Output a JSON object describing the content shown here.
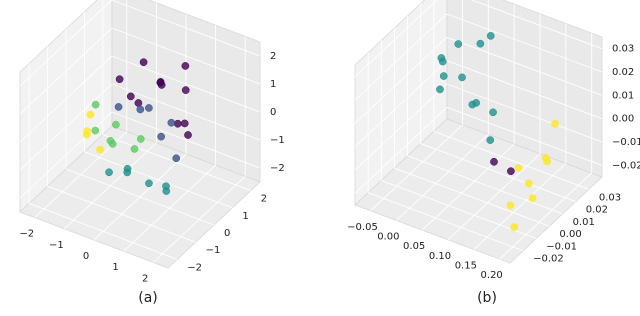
{
  "chart_data": [
    {
      "type": "scatter3d",
      "caption": "(a)",
      "xlim": [
        -2.5,
        2.5
      ],
      "ylim": [
        -2.5,
        2.5
      ],
      "zlim": [
        -2.5,
        2.5
      ],
      "xticks": [
        {
          "value": -2,
          "label": "−2"
        },
        {
          "value": -1,
          "label": "−1"
        },
        0,
        1,
        2
      ],
      "yticks": [
        {
          "value": -2,
          "label": "−2"
        },
        {
          "value": -1,
          "label": "−1"
        },
        0,
        1,
        2
      ],
      "zticks": [
        {
          "value": -2,
          "label": "−2"
        },
        {
          "value": -1,
          "label": "−1"
        },
        0,
        1,
        2
      ],
      "series": [
        {
          "color": "#440154",
          "x": [
            -0.5,
            0.2,
            0.8,
            -1.0,
            0.5,
            1.2,
            -0.2,
            1.0,
            0.0,
            1.4,
            -0.8,
            0.6
          ],
          "y": [
            1.0,
            0.8,
            1.2,
            0.5,
            0.3,
            0.5,
            1.5,
            1.0,
            -0.5,
            -0.2,
            1.2,
            1.5
          ],
          "z": [
            1.5,
            1.2,
            0.9,
            1.0,
            1.6,
            0.3,
            0.5,
            -0.5,
            1.4,
            0.8,
            -0.2,
            1.5
          ]
        },
        {
          "color": "#3b528b",
          "x": [
            0.3,
            -0.3,
            0.9,
            0.5,
            -0.6,
            1.1
          ],
          "y": [
            0.0,
            0.5,
            -0.3,
            0.9,
            -0.2,
            0.2
          ],
          "z": [
            0.8,
            0.2,
            0.2,
            -0.2,
            0.6,
            -0.8
          ]
        },
        {
          "color": "#21918c",
          "x": [
            0.8,
            0.2,
            1.2,
            -0.3,
            0.5,
            1.5
          ],
          "y": [
            -0.8,
            -1.0,
            -0.5,
            -1.2,
            -1.5,
            -1.0
          ],
          "z": [
            -1.2,
            -0.8,
            -1.5,
            -1.0,
            -0.5,
            -0.9
          ]
        },
        {
          "color": "#5ec962",
          "x": [
            -1.2,
            -0.8,
            -1.5,
            -0.5,
            0.0,
            -1.0,
            0.4
          ],
          "y": [
            -0.5,
            -0.2,
            0.0,
            -0.8,
            -0.3,
            0.3,
            -0.6
          ],
          "z": [
            -0.3,
            -0.8,
            0.2,
            -0.2,
            -0.6,
            -0.5,
            0.1
          ]
        },
        {
          "color": "#fde725",
          "x": [
            -1.6,
            -1.3,
            -1.8,
            -1.1
          ],
          "y": [
            -0.3,
            -0.8,
            0.2,
            -0.4
          ],
          "z": [
            -0.6,
            -0.3,
            -0.4,
            -1.0
          ]
        }
      ]
    },
    {
      "type": "scatter3d",
      "caption": "(b)",
      "xlim": [
        -0.08,
        0.22
      ],
      "ylim": [
        -0.03,
        0.04
      ],
      "zlim": [
        -0.025,
        0.035
      ],
      "xticks": [
        {
          "value": -0.05,
          "label": "−0.05"
        },
        {
          "value": 0,
          "label": "0.00"
        },
        {
          "value": 0.05,
          "label": "0.05"
        },
        {
          "value": 0.1,
          "label": "0.10"
        },
        {
          "value": 0.15,
          "label": "0.15"
        },
        {
          "value": 0.2,
          "label": "0.20"
        }
      ],
      "yticks": [
        {
          "value": -0.02,
          "label": "−0.02"
        },
        {
          "value": -0.01,
          "label": "−0.01"
        },
        {
          "value": 0,
          "label": "0.00"
        },
        0.01,
        0.02,
        0.03
      ],
      "zticks": [
        {
          "value": -0.02,
          "label": "−0.02"
        },
        {
          "value": -0.01,
          "label": "−0.01"
        },
        {
          "value": 0,
          "label": "0.00"
        },
        0.01,
        0.02,
        0.03
      ],
      "series": [
        {
          "color": "#21918c",
          "x": [
            -0.04,
            -0.02,
            0.0,
            -0.03,
            0.01,
            0.02,
            -0.05,
            0.04,
            0.06,
            0.08,
            -0.01,
            0.03
          ],
          "y": [
            0.02,
            0.025,
            0.02,
            0.015,
            0.03,
            0.02,
            0.025,
            0.015,
            0.02,
            0.01,
            0.01,
            0.03
          ],
          "z": [
            0.015,
            0.02,
            0.01,
            0.005,
            0.02,
            0.0,
            0.01,
            0.005,
            0.0,
            -0.005,
            0.015,
            0.025
          ]
        },
        {
          "color": "#440154",
          "x": [
            0.1,
            0.12
          ],
          "y": [
            0.005,
            0.01
          ],
          "z": [
            -0.01,
            -0.015
          ]
        },
        {
          "color": "#fde725",
          "x": [
            0.18,
            0.19,
            0.17,
            0.2,
            0.16,
            0.19,
            0.18,
            0.2
          ],
          "y": [
            0.0,
            0.01,
            -0.01,
            0.005,
            0.0,
            -0.015,
            0.02,
            -0.005
          ],
          "z": [
            -0.01,
            -0.005,
            -0.015,
            0.0,
            -0.005,
            -0.02,
            0.005,
            -0.012
          ]
        }
      ]
    }
  ]
}
